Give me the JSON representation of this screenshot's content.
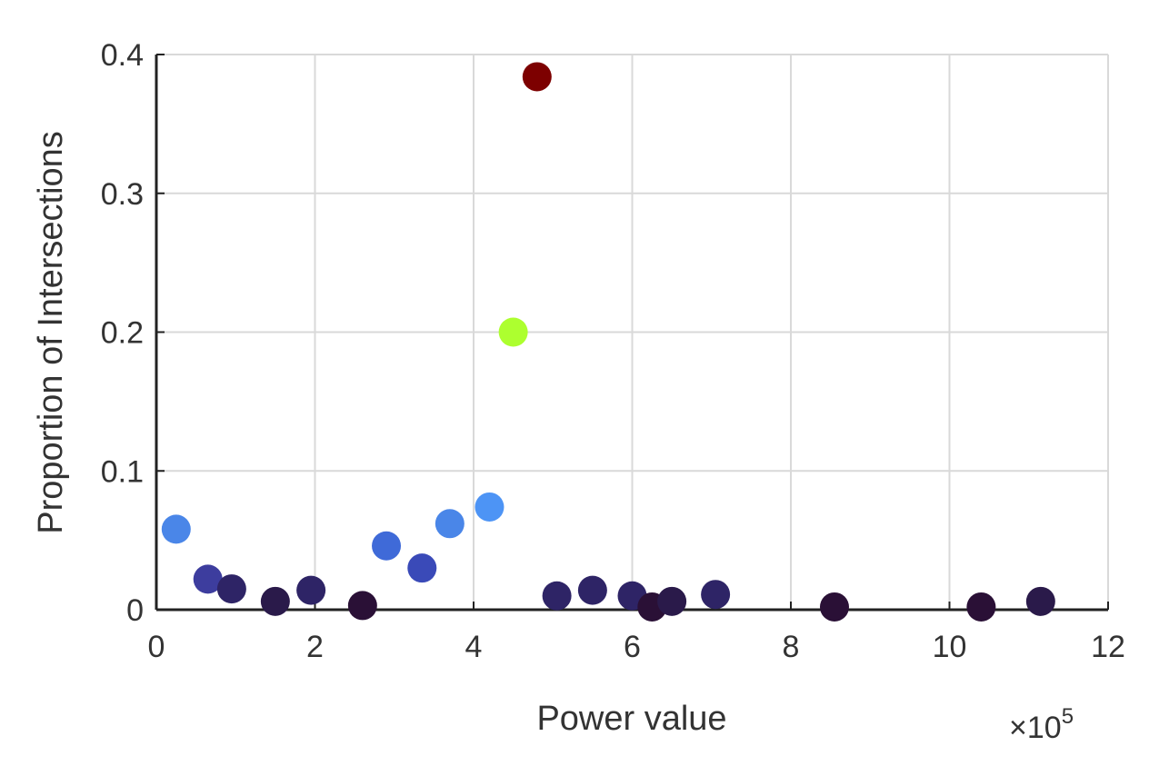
{
  "chart_data": {
    "type": "scatter",
    "title": "",
    "xlabel": "Power value",
    "ylabel": "Proportion of Intersections",
    "x_multiplier": {
      "base": "×10",
      "exponent": "5"
    },
    "xlim": [
      0,
      12
    ],
    "ylim": [
      0,
      0.4
    ],
    "x_ticks": [
      "0",
      "2",
      "4",
      "6",
      "8",
      "10",
      "12"
    ],
    "y_ticks": [
      "0",
      "0.1",
      "0.2",
      "0.3",
      "0.4"
    ],
    "grid": true,
    "points": [
      {
        "x": 0.25,
        "y": 0.058,
        "color": "#4a86e8"
      },
      {
        "x": 0.65,
        "y": 0.022,
        "color": "#3d3d9e"
      },
      {
        "x": 0.95,
        "y": 0.015,
        "color": "#2e2466"
      },
      {
        "x": 1.5,
        "y": 0.006,
        "color": "#2a1a4a"
      },
      {
        "x": 1.95,
        "y": 0.014,
        "color": "#2e2466"
      },
      {
        "x": 2.6,
        "y": 0.003,
        "color": "#2a1036"
      },
      {
        "x": 2.9,
        "y": 0.046,
        "color": "#3f6ad8"
      },
      {
        "x": 3.35,
        "y": 0.03,
        "color": "#3a4ab8"
      },
      {
        "x": 3.7,
        "y": 0.062,
        "color": "#4a86e8"
      },
      {
        "x": 4.2,
        "y": 0.074,
        "color": "#4d94f5"
      },
      {
        "x": 4.5,
        "y": 0.2,
        "color": "#adff2f"
      },
      {
        "x": 4.8,
        "y": 0.384,
        "color": "#7d0000"
      },
      {
        "x": 5.05,
        "y": 0.01,
        "color": "#2e2466"
      },
      {
        "x": 5.5,
        "y": 0.014,
        "color": "#2e2466"
      },
      {
        "x": 6.0,
        "y": 0.01,
        "color": "#2e2466"
      },
      {
        "x": 6.25,
        "y": 0.002,
        "color": "#2a1036"
      },
      {
        "x": 6.5,
        "y": 0.006,
        "color": "#2a1a4a"
      },
      {
        "x": 7.05,
        "y": 0.011,
        "color": "#2e2466"
      },
      {
        "x": 8.55,
        "y": 0.002,
        "color": "#2a1036"
      },
      {
        "x": 10.4,
        "y": 0.002,
        "color": "#2a1036"
      },
      {
        "x": 11.15,
        "y": 0.006,
        "color": "#2a1a4a"
      }
    ]
  }
}
